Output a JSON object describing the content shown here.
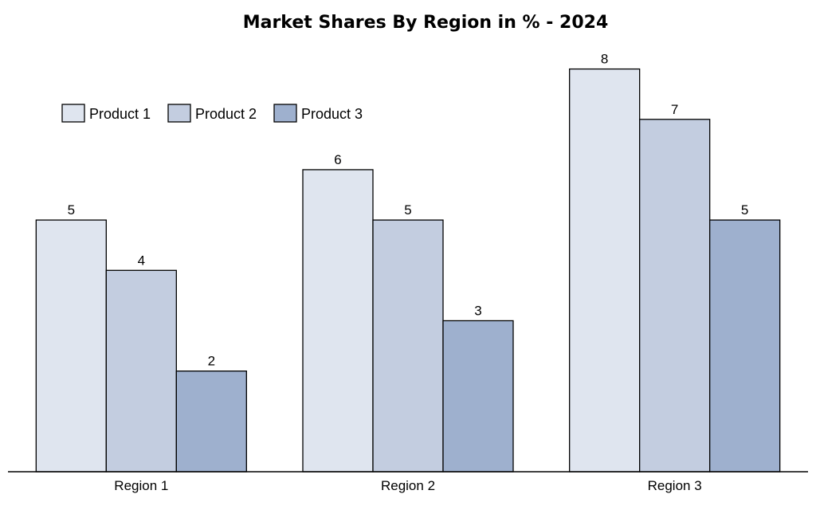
{
  "chart_data": {
    "type": "bar",
    "title": "Market Shares By Region in % - 2024",
    "categories": [
      "Region 1",
      "Region 2",
      "Region 3"
    ],
    "series": [
      {
        "name": "Product 1",
        "values": [
          5,
          6,
          8
        ],
        "color": "#dfe5ef"
      },
      {
        "name": "Product 2",
        "values": [
          4,
          5,
          7
        ],
        "color": "#c3cde0"
      },
      {
        "name": "Product 3",
        "values": [
          2,
          3,
          5
        ],
        "color": "#9eb0ce"
      }
    ],
    "xlabel": "",
    "ylabel": "",
    "ylim": [
      0,
      8.5
    ],
    "grid": false,
    "legend_position": "top-left",
    "show_data_labels": true
  }
}
